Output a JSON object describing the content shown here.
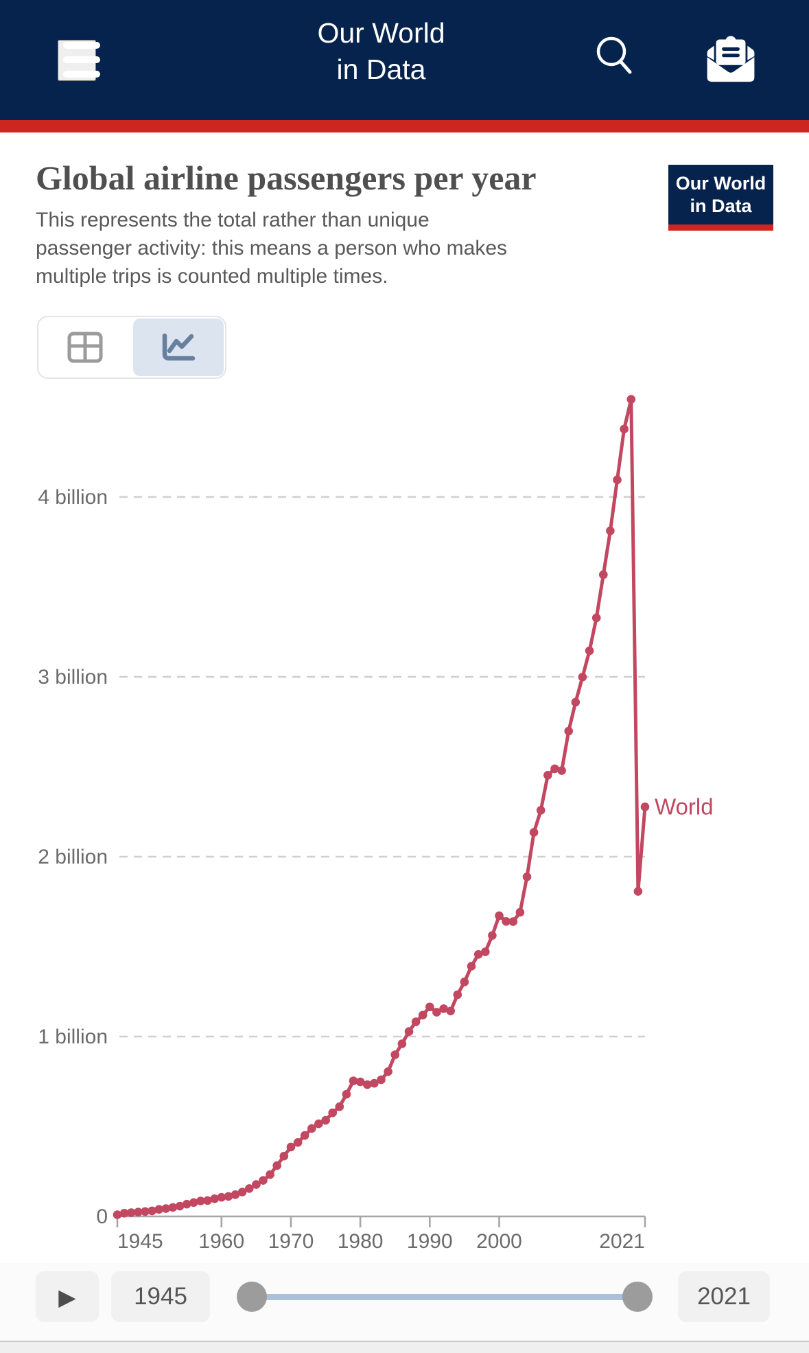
{
  "colors": {
    "navy": "#05234c",
    "red": "#cd2520",
    "line": "#c24760",
    "tab_selected_bg": "#dce5ef",
    "tab_selected_icon": "#6780a0",
    "tab_unselected_icon": "#9b9b9b",
    "slider_track": "#a9c1d9"
  },
  "header": {
    "title_line1": "Our World",
    "title_line2": "in Data",
    "menu_icon": "hamburger-icon",
    "search_icon": "magnifier-icon",
    "newsletter_icon": "open-envelope-icon"
  },
  "logo": {
    "line1": "Our World",
    "line2": "in Data"
  },
  "page": {
    "title": "Global airline passengers per year",
    "subtitle": "This represents the total rather than unique passenger activity: this means a person who makes multiple trips is counted multiple times."
  },
  "tabs": [
    {
      "name": "table",
      "icon": "table-icon",
      "selected": false
    },
    {
      "name": "chart",
      "icon": "line-chart-icon",
      "selected": true
    }
  ],
  "timeline": {
    "play_glyph": "▶",
    "from_label": "1945",
    "to_label": "2021"
  },
  "chart_data": {
    "type": "line",
    "title": "Global airline passengers per year",
    "unit": "passengers (billions)",
    "xlim": [
      1945,
      2021
    ],
    "ylim": [
      0,
      4.6
    ],
    "grid": true,
    "legend_position": "line-end-label",
    "yticks": [
      {
        "value": 0,
        "label": "0"
      },
      {
        "value": 1,
        "label": "1 billion"
      },
      {
        "value": 2,
        "label": "2 billion"
      },
      {
        "value": 3,
        "label": "3 billion"
      },
      {
        "value": 4,
        "label": "4 billion"
      }
    ],
    "xticks": [
      1945,
      1960,
      1970,
      1980,
      1990,
      2000,
      2021
    ],
    "x": [
      1945,
      1946,
      1947,
      1948,
      1949,
      1950,
      1951,
      1952,
      1953,
      1954,
      1955,
      1956,
      1957,
      1958,
      1959,
      1960,
      1961,
      1962,
      1963,
      1964,
      1965,
      1966,
      1967,
      1968,
      1969,
      1970,
      1971,
      1972,
      1973,
      1974,
      1975,
      1976,
      1977,
      1978,
      1979,
      1980,
      1981,
      1982,
      1983,
      1984,
      1985,
      1986,
      1987,
      1988,
      1989,
      1990,
      1991,
      1992,
      1993,
      1994,
      1995,
      1996,
      1997,
      1998,
      1999,
      2000,
      2001,
      2002,
      2003,
      2004,
      2005,
      2006,
      2007,
      2008,
      2009,
      2010,
      2011,
      2012,
      2013,
      2014,
      2015,
      2016,
      2017,
      2018,
      2019,
      2020,
      2021
    ],
    "series": [
      {
        "name": "World",
        "values": [
          0.009,
          0.018,
          0.021,
          0.024,
          0.027,
          0.031,
          0.039,
          0.044,
          0.05,
          0.057,
          0.068,
          0.077,
          0.086,
          0.088,
          0.098,
          0.106,
          0.111,
          0.121,
          0.135,
          0.155,
          0.177,
          0.2,
          0.233,
          0.283,
          0.335,
          0.386,
          0.411,
          0.45,
          0.489,
          0.515,
          0.534,
          0.576,
          0.61,
          0.679,
          0.754,
          0.748,
          0.733,
          0.74,
          0.76,
          0.805,
          0.899,
          0.96,
          1.028,
          1.082,
          1.119,
          1.165,
          1.135,
          1.155,
          1.142,
          1.233,
          1.304,
          1.391,
          1.457,
          1.471,
          1.562,
          1.672,
          1.64,
          1.639,
          1.691,
          1.888,
          2.135,
          2.258,
          2.453,
          2.489,
          2.479,
          2.698,
          2.859,
          2.999,
          3.145,
          3.328,
          3.568,
          3.812,
          4.095,
          4.378,
          4.543,
          1.807,
          2.277
        ]
      }
    ]
  }
}
